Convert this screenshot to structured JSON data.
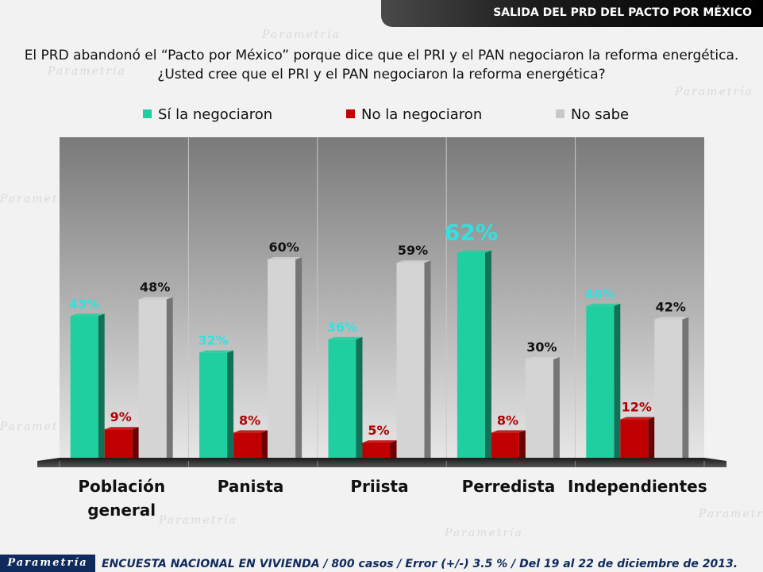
{
  "header": {
    "title": "SALIDA DEL PRD DEL PACTO POR MÉXICO"
  },
  "question": {
    "line1": "El PRD abandonó el “Pacto por México” porque dice que el PRI y el PAN negociaron la reforma energética.",
    "line2": "¿Usted cree que el PRI y el PAN negociaron la reforma energética?"
  },
  "brand": {
    "logo_text": "Parametría"
  },
  "footer": {
    "text": "ENCUESTA NACIONAL EN VIVIENDA / 800 casos / Error (+/-) 3.5 % / Del 19 al 22 de diciembre de 2013."
  },
  "chart_data": {
    "type": "bar",
    "categories": [
      "Población general",
      "Panista",
      "Priista",
      "Perredista",
      "Independientes"
    ],
    "series": [
      {
        "name": "Sí la negociaron",
        "values": [
          43,
          32,
          36,
          62,
          46
        ],
        "color": "#1fcf9f",
        "label_color": "#33e0e0"
      },
      {
        "name": "No la negociaron",
        "values": [
          9,
          8,
          5,
          8,
          12
        ],
        "color": "#c00000",
        "label_color": "#b00000"
      },
      {
        "name": "No sabe",
        "values": [
          48,
          60,
          59,
          30,
          42
        ],
        "color": "#d4d4d4",
        "label_color": "#111111"
      }
    ],
    "value_suffix": "%",
    "highlight": {
      "series": 0,
      "category": 3
    },
    "ylim": [
      0,
      100
    ],
    "legend_position": "top",
    "grid": false
  }
}
